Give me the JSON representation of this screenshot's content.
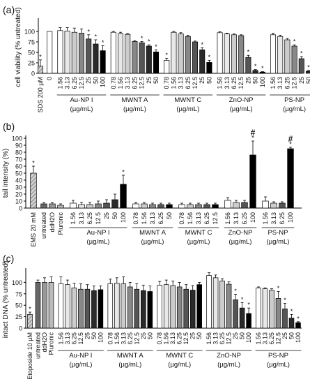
{
  "panels": [
    {
      "letter": "(a)",
      "ylabel": "cell viability (% untreated)",
      "yticks": [
        "0",
        "25",
        "50",
        "75",
        "100"
      ],
      "ylim": [
        0,
        125
      ]
    },
    {
      "letter": "(b)",
      "ylabel": "tail intensity (%)",
      "yticks": [
        "0",
        "10",
        "20",
        "30",
        "40",
        "50",
        "60",
        "70",
        "80",
        "90",
        "100"
      ],
      "ylim": [
        0,
        100
      ]
    },
    {
      "letter": "(c)",
      "ylabel": "intact DNA (% untreated)",
      "yticks": [
        "0",
        "25",
        "50",
        "75",
        "100"
      ],
      "ylim": [
        0,
        125
      ]
    }
  ],
  "chart_data": [
    {
      "type": "bar",
      "panel": "(a)",
      "ylabel": "cell viability (% untreated)",
      "ylim": [
        0,
        125
      ],
      "categories": [
        "SDS 200 µM",
        "0",
        "1.56",
        "3.13",
        "6.25",
        "12.5",
        "25",
        "50",
        "100",
        "0.78",
        "1.56",
        "3.13",
        "6.25",
        "12.5",
        "25",
        "50",
        "0.78",
        "1.56",
        "3.13",
        "6.25",
        "12.5",
        "25",
        "50",
        "1.56",
        "3.13",
        "6.25",
        "12.5",
        "25",
        "50",
        "100",
        "1.56",
        "3.13",
        "6.25",
        "12.5",
        "25",
        "50",
        "100"
      ],
      "values": [
        17,
        100,
        102,
        101,
        98,
        96,
        82,
        70,
        54,
        98,
        95,
        93,
        76,
        73,
        65,
        51,
        31,
        98,
        94,
        88,
        75,
        56,
        26,
        97,
        94,
        92,
        90,
        38,
        7,
        3,
        92,
        88,
        80,
        65,
        35,
        5,
        1
      ],
      "errors": [
        15,
        0,
        7,
        8,
        10,
        10,
        10,
        10,
        12,
        2,
        3,
        2,
        2,
        3,
        3,
        5,
        5,
        2,
        3,
        3,
        2,
        5,
        5,
        2,
        2,
        2,
        2,
        5,
        2,
        1,
        4,
        3,
        3,
        3,
        5,
        2,
        1
      ],
      "significant": [
        true,
        false,
        false,
        false,
        false,
        false,
        true,
        true,
        true,
        false,
        false,
        false,
        false,
        true,
        true,
        true,
        true,
        false,
        false,
        false,
        false,
        true,
        true,
        false,
        false,
        false,
        false,
        true,
        true,
        true,
        false,
        false,
        false,
        true,
        true,
        true,
        true
      ],
      "significance_mark": "*",
      "groups": [
        {
          "label": "Au-NP I",
          "unit": "(µg/mL)",
          "from": 2,
          "to": 8
        },
        {
          "label": "MWNT A",
          "unit": "(µg/mL)",
          "from": 9,
          "to": 15
        },
        {
          "label": "MWNT C",
          "unit": "(µg/mL)",
          "from": 16,
          "to": 22
        },
        {
          "label": "ZnO-NP",
          "unit": "(µg/mL)",
          "from": 23,
          "to": 29
        },
        {
          "label": "PS-NP",
          "unit": "(µg/mL)",
          "from": 30,
          "to": 36
        }
      ]
    },
    {
      "type": "bar",
      "panel": "(b)",
      "ylabel": "tail intensity (%)",
      "ylim": [
        0,
        100
      ],
      "categories": [
        "EMS 20 mM",
        "untreated",
        "ddH2O",
        "Pluronic",
        "1.56",
        "3.13",
        "6.25",
        "12.5",
        "25",
        "50",
        "100",
        "0.78",
        "1.56",
        "3.13",
        "6.25",
        "50",
        "0.78",
        "1.56",
        "3.13",
        "6.25",
        "12.5",
        "1.56",
        "3.13",
        "6.25",
        "100",
        "1.56",
        "3.13",
        "6.25",
        "100"
      ],
      "values": [
        50,
        6,
        6,
        4,
        7,
        5,
        5,
        6,
        7,
        12,
        34,
        6,
        6,
        5,
        5,
        5,
        5,
        5,
        5,
        5,
        5,
        11,
        8,
        8,
        76,
        10,
        7,
        7,
        85
      ],
      "errors": [
        10,
        2,
        2,
        2,
        4,
        3,
        3,
        4,
        5,
        8,
        13,
        2,
        2,
        2,
        2,
        2,
        2,
        2,
        2,
        2,
        2,
        4,
        3,
        3,
        20,
        6,
        2,
        2,
        2
      ],
      "significant": [
        true,
        false,
        false,
        false,
        false,
        false,
        false,
        false,
        false,
        false,
        true,
        false,
        false,
        false,
        false,
        false,
        false,
        false,
        false,
        false,
        false,
        false,
        false,
        false,
        true,
        false,
        false,
        false,
        true
      ],
      "significance_mark": "*",
      "hash_marks": [
        24,
        28
      ],
      "hash_symbol": "#",
      "groups": [
        {
          "label": "Au-NP I",
          "unit": "(µg/mL)",
          "from": 4,
          "to": 10
        },
        {
          "label": "MWNT A",
          "unit": "(µg/mL)",
          "from": 11,
          "to": 15
        },
        {
          "label": "MWNT C",
          "unit": "(µg/mL)",
          "from": 16,
          "to": 20
        },
        {
          "label": "ZnO-NP",
          "unit": "(µg/mL)",
          "from": 21,
          "to": 24
        },
        {
          "label": "PS-NP",
          "unit": "(µg/mL)",
          "from": 25,
          "to": 28
        }
      ]
    },
    {
      "type": "bar",
      "panel": "(c)",
      "ylabel": "intact DNA (% untreated)",
      "ylim": [
        0,
        125
      ],
      "categories": [
        "Etoposide 10 µM",
        "untreated",
        "ddH2O",
        "Pluronic",
        "1.56",
        "3.13",
        "6.25",
        "12.5",
        "25",
        "50",
        "100",
        "0.78",
        "1.56",
        "3.13",
        "6.25",
        "12.5",
        "25",
        "50",
        "0.78",
        "1.56",
        "3.13",
        "6.25",
        "12.5",
        "25",
        "50",
        "1.56",
        "3.13",
        "6.25",
        "12.5",
        "25",
        "50",
        "100",
        "1.56",
        "3.13",
        "6.25",
        "12.5",
        "25",
        "50",
        "100"
      ],
      "values": [
        30,
        100,
        100,
        100,
        97,
        95,
        88,
        85,
        85,
        82,
        84,
        97,
        98,
        97,
        90,
        85,
        82,
        80,
        94,
        95,
        93,
        90,
        85,
        83,
        95,
        115,
        110,
        103,
        96,
        62,
        44,
        32,
        88,
        86,
        83,
        65,
        42,
        22,
        12
      ],
      "errors": [
        5,
        5,
        10,
        12,
        15,
        10,
        10,
        12,
        10,
        10,
        8,
        10,
        12,
        15,
        10,
        12,
        12,
        12,
        8,
        10,
        10,
        10,
        10,
        10,
        5,
        6,
        6,
        5,
        5,
        12,
        12,
        12,
        2,
        2,
        3,
        15,
        12,
        8,
        2
      ],
      "significant": [
        true,
        false,
        false,
        false,
        false,
        false,
        false,
        false,
        false,
        false,
        false,
        false,
        false,
        false,
        false,
        false,
        false,
        false,
        false,
        false,
        false,
        false,
        false,
        false,
        false,
        false,
        false,
        false,
        false,
        true,
        true,
        true,
        false,
        false,
        false,
        true,
        true,
        true,
        true
      ],
      "significance_mark": "*",
      "groups": [
        {
          "label": "Au-NP I",
          "unit": "(µg/mL)",
          "from": 4,
          "to": 10
        },
        {
          "label": "MWNT A",
          "unit": "(µg/mL)",
          "from": 11,
          "to": 17
        },
        {
          "label": "MWNT C",
          "unit": "(µg/mL)",
          "from": 18,
          "to": 24
        },
        {
          "label": "ZnO-NP",
          "unit": "(µg/mL)",
          "from": 25,
          "to": 31
        },
        {
          "label": "PS-NP",
          "unit": "(µg/mL)",
          "from": 32,
          "to": 38
        }
      ]
    }
  ]
}
